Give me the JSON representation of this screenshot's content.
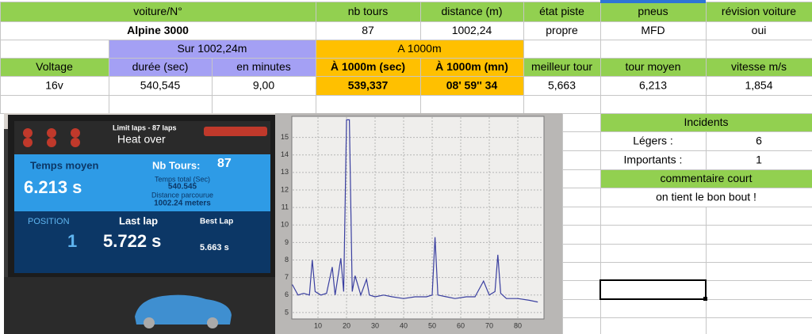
{
  "table": {
    "rows": [
      [
        "voiture/N°",
        "nb tours",
        "distance (m)",
        "état piste",
        "pneus",
        "révision voiture"
      ],
      [
        "Alpine 3000",
        "87",
        "1002,24",
        "propre",
        "MFD",
        "oui"
      ],
      [
        "Sur 1002,24m",
        "A 1000m"
      ],
      [
        "Voltage",
        "durée (sec)",
        "en minutes",
        "À 1000m (sec)",
        "À 1000m (mn)",
        "meilleur tour",
        "tour moyen",
        "vitesse m/s"
      ],
      [
        "16v",
        "540,545",
        "9,00",
        "539,337",
        "08' 59'' 34",
        "5,663",
        "6,213",
        "1,854"
      ]
    ]
  },
  "incidents": {
    "title": "Incidents",
    "rows": [
      [
        "Légers :",
        "6"
      ],
      [
        "Importants :",
        "1"
      ]
    ],
    "comment_title": "commentaire court",
    "comment": "on tient le bon bout !"
  },
  "screen": {
    "limit": "Limit laps - 87 laps",
    "status": "Heat over",
    "avg_label": "Temps moyen",
    "avg": "6.213 s",
    "laps_label": "Nb Tours:",
    "laps": "87",
    "total_label": "Temps total (Sec)",
    "total": "540.545",
    "dist_label": "Distance parcourue",
    "dist": "1002.24 meters",
    "position_label": "POSITION",
    "position": "1",
    "last_label": "Last lap",
    "last": "5.722 s",
    "best_label": "Best Lap",
    "best": "5.663 s"
  },
  "graph": {
    "xlim": [
      0,
      88
    ],
    "ylim": [
      4.5,
      16.2
    ],
    "xticks": [
      10,
      20,
      30,
      40,
      50,
      60,
      70,
      80
    ],
    "yticks": [
      5,
      6,
      7,
      8,
      9,
      10,
      11,
      12,
      13,
      14,
      15
    ],
    "x": [
      1,
      3,
      5,
      7,
      8,
      9,
      11,
      13,
      15,
      16,
      18,
      19,
      20,
      21,
      22,
      23,
      25,
      27,
      28,
      30,
      33,
      36,
      40,
      44,
      48,
      50,
      51,
      52,
      55,
      58,
      62,
      65,
      68,
      70,
      72,
      73,
      74,
      76,
      80,
      84,
      87
    ],
    "values": [
      6.6,
      6.0,
      6.1,
      6.0,
      8.0,
      6.2,
      6.0,
      6.1,
      7.6,
      6.0,
      8.1,
      6.2,
      16.0,
      16.0,
      6.2,
      7.1,
      6.0,
      6.9,
      6.0,
      5.9,
      6.0,
      5.9,
      5.8,
      5.9,
      5.9,
      6.0,
      9.3,
      6.0,
      5.9,
      5.8,
      5.9,
      5.9,
      6.8,
      6.0,
      6.2,
      8.3,
      6.1,
      5.8,
      5.8,
      5.7,
      5.6
    ]
  }
}
